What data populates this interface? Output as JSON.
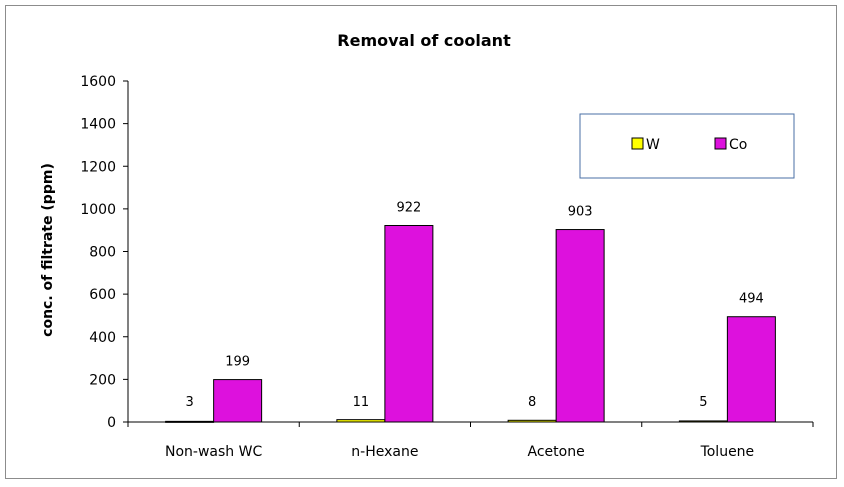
{
  "chart_data": {
    "type": "bar",
    "title": "Removal of coolant",
    "xlabel": "",
    "ylabel": "conc. of filtrate (ppm)",
    "ylim": [
      0,
      1600
    ],
    "yticks": [
      0,
      200,
      400,
      600,
      800,
      1000,
      1200,
      1400,
      1600
    ],
    "grid": false,
    "legend_position": "top-right",
    "categories": [
      "Non-wash WC",
      "n-Hexane",
      "Acetone",
      "Toluene"
    ],
    "series": [
      {
        "name": "W",
        "color": "#ffff00",
        "values": [
          3,
          11,
          8,
          5
        ]
      },
      {
        "name": "Co",
        "color": "#dd11dd",
        "values": [
          199,
          922,
          903,
          494
        ]
      }
    ]
  }
}
